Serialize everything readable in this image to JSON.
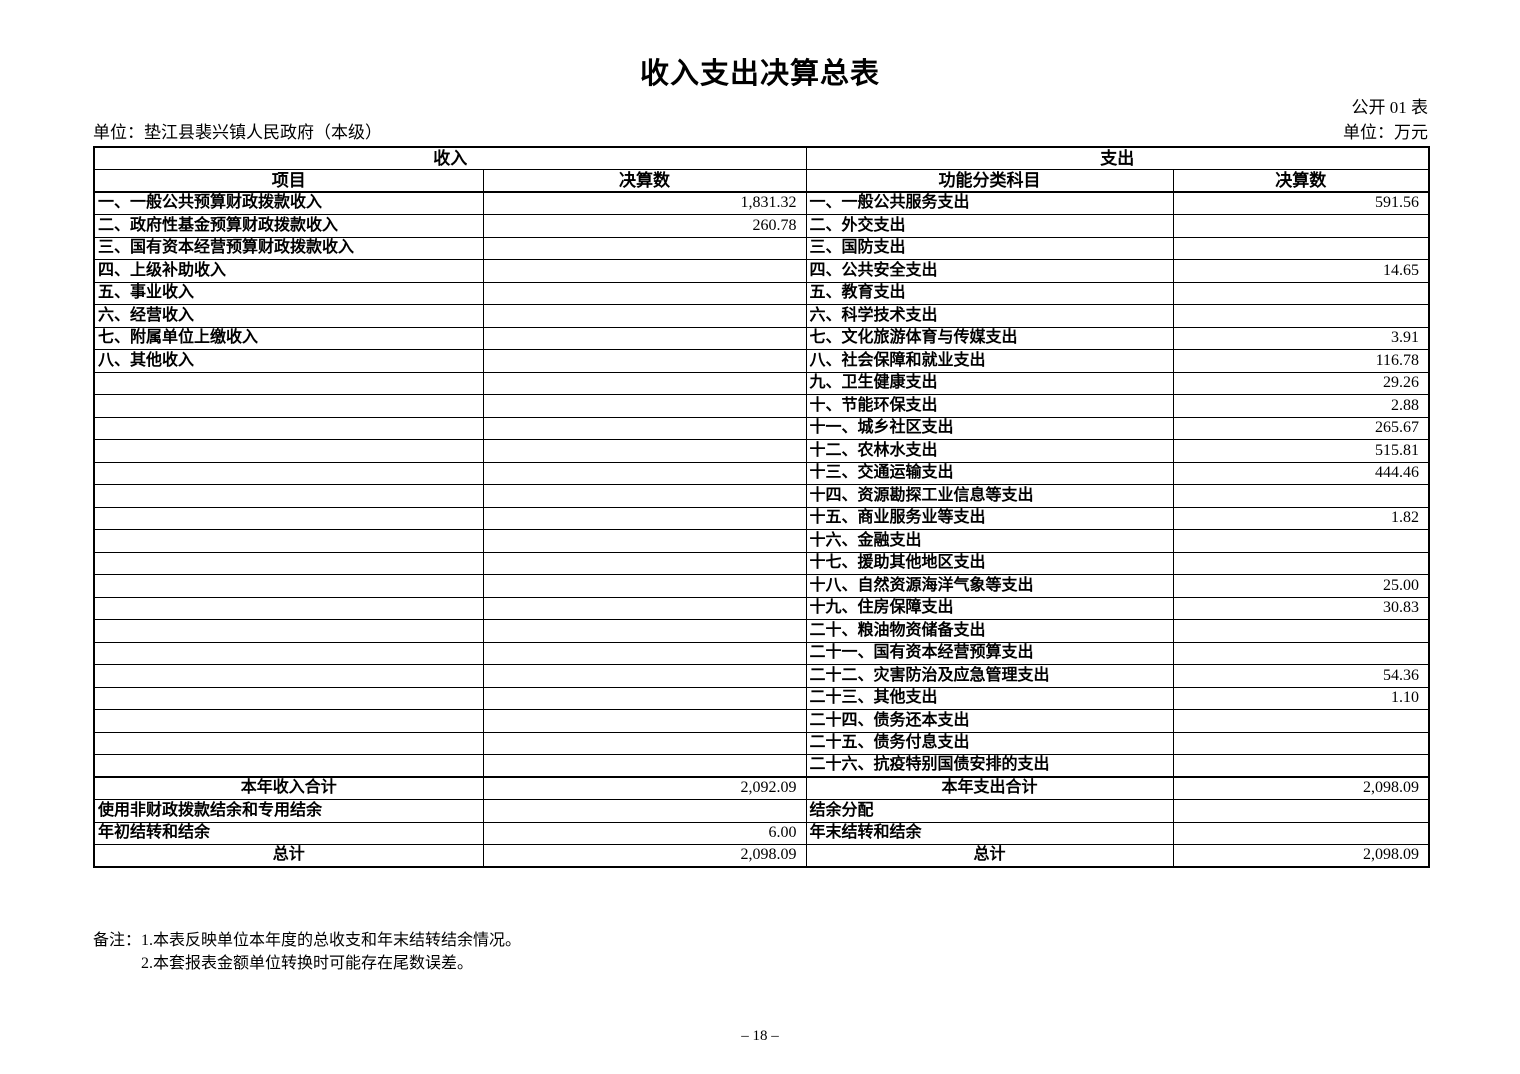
{
  "page": {
    "title": "收入支出决算总表",
    "doc_label": "公开 01 表",
    "unit_name": "单位：垫江县裴兴镇人民政府（本级）",
    "unit_currency": "单位：万元",
    "notes_label": "备注：",
    "notes": [
      "1.本表反映单位本年度的总收支和年末结转结余情况。",
      "2.本套报表金额单位转换时可能存在尾数误差。"
    ],
    "page_number": "– 18 –"
  },
  "colors": {
    "text": "#000000",
    "background": "#ffffff",
    "grid": "#000000"
  },
  "table": {
    "revenue": {
      "section_header": "收入",
      "columns": [
        "项目",
        "决算数"
      ],
      "rows": [
        {
          "label": "一、一般公共预算财政拨款收入",
          "value": "1,831.32"
        },
        {
          "label": "二、政府性基金预算财政拨款收入",
          "value": "260.78"
        },
        {
          "label": "三、国有资本经营预算财政拨款收入",
          "value": ""
        },
        {
          "label": "四、上级补助收入",
          "value": ""
        },
        {
          "label": "五、事业收入",
          "value": ""
        },
        {
          "label": "六、经营收入",
          "value": ""
        },
        {
          "label": "七、附属单位上缴收入",
          "value": ""
        },
        {
          "label": "八、其他收入",
          "value": ""
        },
        {
          "label": "",
          "value": ""
        },
        {
          "label": "",
          "value": ""
        },
        {
          "label": "",
          "value": ""
        },
        {
          "label": "",
          "value": ""
        },
        {
          "label": "",
          "value": ""
        },
        {
          "label": "",
          "value": ""
        },
        {
          "label": "",
          "value": ""
        },
        {
          "label": "",
          "value": ""
        },
        {
          "label": "",
          "value": ""
        },
        {
          "label": "",
          "value": ""
        },
        {
          "label": "",
          "value": ""
        },
        {
          "label": "",
          "value": ""
        },
        {
          "label": "",
          "value": ""
        },
        {
          "label": "",
          "value": ""
        },
        {
          "label": "",
          "value": ""
        },
        {
          "label": "",
          "value": ""
        },
        {
          "label": "",
          "value": ""
        },
        {
          "label": "",
          "value": ""
        }
      ],
      "totals": [
        {
          "label": "本年收入合计",
          "value": "2,092.09",
          "align": "center"
        },
        {
          "label": "使用非财政拨款结余和专用结余",
          "value": "",
          "align": "left"
        },
        {
          "label": "年初结转和结余",
          "value": "6.00",
          "align": "left"
        },
        {
          "label": "总计",
          "value": "2,098.09",
          "align": "center"
        }
      ]
    },
    "expenditure": {
      "section_header": "支出",
      "columns": [
        "功能分类科目",
        "决算数"
      ],
      "rows": [
        {
          "label": "一、一般公共服务支出",
          "value": "591.56"
        },
        {
          "label": "二、外交支出",
          "value": ""
        },
        {
          "label": "三、国防支出",
          "value": ""
        },
        {
          "label": "四、公共安全支出",
          "value": "14.65"
        },
        {
          "label": "五、教育支出",
          "value": ""
        },
        {
          "label": "六、科学技术支出",
          "value": ""
        },
        {
          "label": "七、文化旅游体育与传媒支出",
          "value": "3.91"
        },
        {
          "label": "八、社会保障和就业支出",
          "value": "116.78"
        },
        {
          "label": "九、卫生健康支出",
          "value": "29.26"
        },
        {
          "label": "十、节能环保支出",
          "value": "2.88"
        },
        {
          "label": "十一、城乡社区支出",
          "value": "265.67"
        },
        {
          "label": "十二、农林水支出",
          "value": "515.81"
        },
        {
          "label": "十三、交通运输支出",
          "value": "444.46"
        },
        {
          "label": "十四、资源勘探工业信息等支出",
          "value": ""
        },
        {
          "label": "十五、商业服务业等支出",
          "value": "1.82"
        },
        {
          "label": "十六、金融支出",
          "value": ""
        },
        {
          "label": "十七、援助其他地区支出",
          "value": ""
        },
        {
          "label": "十八、自然资源海洋气象等支出",
          "value": "25.00"
        },
        {
          "label": "十九、住房保障支出",
          "value": "30.83"
        },
        {
          "label": "二十、粮油物资储备支出",
          "value": ""
        },
        {
          "label": "二十一、国有资本经营预算支出",
          "value": ""
        },
        {
          "label": "二十二、灾害防治及应急管理支出",
          "value": "54.36"
        },
        {
          "label": "二十三、其他支出",
          "value": "1.10"
        },
        {
          "label": "二十四、债务还本支出",
          "value": ""
        },
        {
          "label": "二十五、债务付息支出",
          "value": ""
        },
        {
          "label": "二十六、抗疫特别国债安排的支出",
          "value": ""
        }
      ],
      "totals": [
        {
          "label": "本年支出合计",
          "value": "2,098.09",
          "align": "center"
        },
        {
          "label": "结余分配",
          "value": "",
          "align": "left"
        },
        {
          "label": "年末结转和结余",
          "value": "",
          "align": "left"
        },
        {
          "label": "总计",
          "value": "2,098.09",
          "align": "center"
        }
      ]
    }
  }
}
